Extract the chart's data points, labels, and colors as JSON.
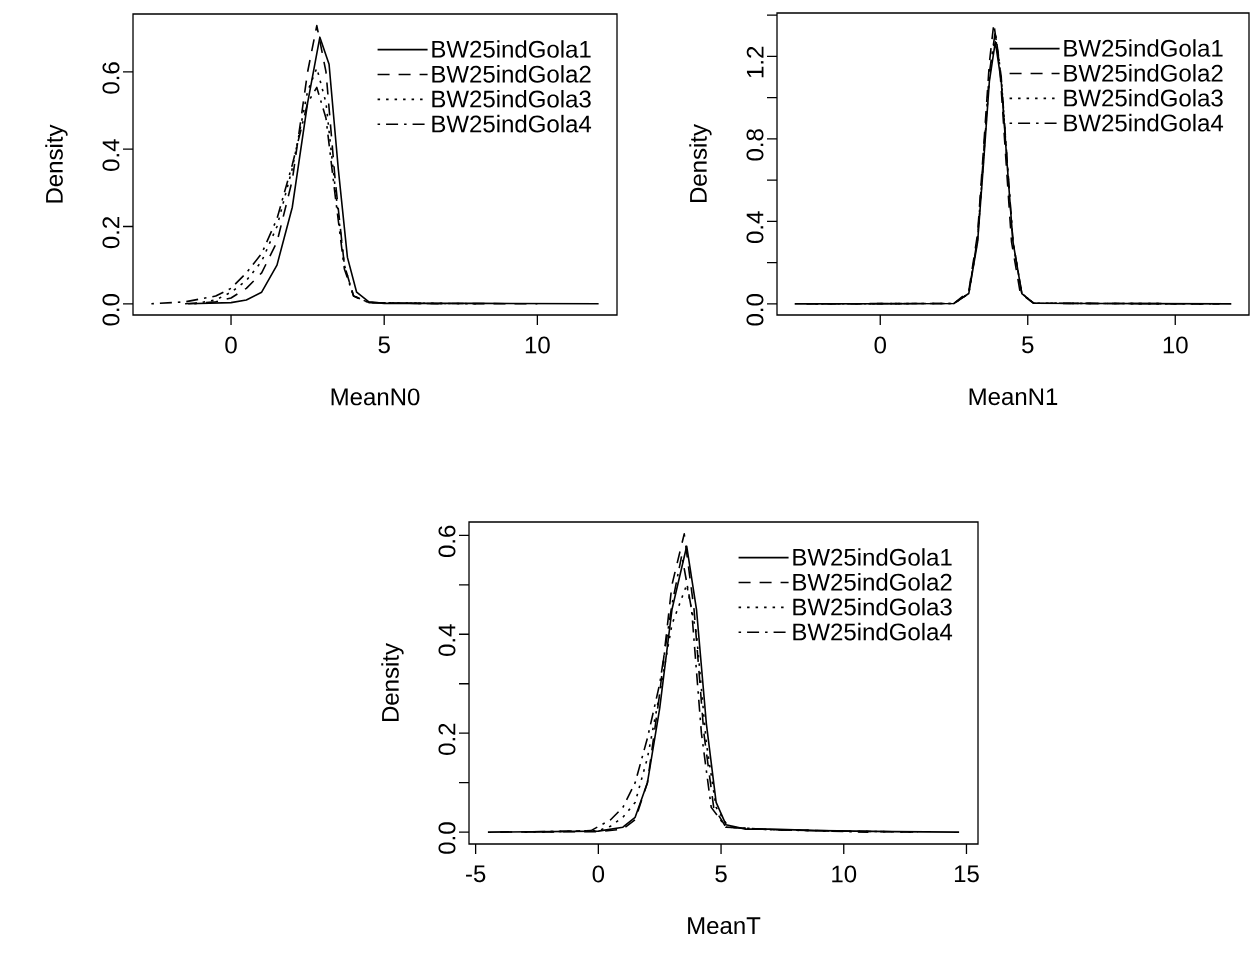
{
  "chart_data": [
    {
      "type": "line",
      "xlabel": "MeanN0",
      "ylabel": "Density",
      "xlim": [
        -3.2,
        12.6
      ],
      "ylim": [
        -0.029,
        0.75
      ],
      "xticks": [
        0,
        5,
        10
      ],
      "yticks": [
        {
          "value": 0,
          "label": "0.0"
        },
        0.2,
        0.4,
        0.6
      ],
      "legend": "top right",
      "series": [
        {
          "name": "BW25indGola1",
          "color": "#000000",
          "line_style": "solid",
          "x": [
            -1.4,
            0,
            0.5,
            1.0,
            1.5,
            2.0,
            2.5,
            2.9,
            3.2,
            3.5,
            3.8,
            4.1,
            4.5,
            5,
            8,
            12
          ],
          "values": [
            0,
            0.003,
            0.01,
            0.03,
            0.1,
            0.25,
            0.52,
            0.69,
            0.62,
            0.35,
            0.12,
            0.03,
            0.005,
            0.001,
            0.001,
            0
          ]
        },
        {
          "name": "BW25indGola2",
          "color": "#000000",
          "line_style": "dashed",
          "x": [
            -1.5,
            -0.5,
            0,
            0.5,
            1.0,
            1.5,
            2.0,
            2.5,
            2.8,
            3.1,
            3.4,
            3.7,
            4.0,
            4.5,
            6,
            10
          ],
          "values": [
            0,
            0.005,
            0.015,
            0.04,
            0.08,
            0.16,
            0.32,
            0.6,
            0.72,
            0.6,
            0.32,
            0.1,
            0.02,
            0.003,
            0.001,
            0
          ]
        },
        {
          "name": "BW25indGola3",
          "color": "#000000",
          "line_style": "dotted",
          "x": [
            -1.2,
            -0.5,
            0,
            0.5,
            1.0,
            1.5,
            2.0,
            2.5,
            2.8,
            3.1,
            3.4,
            3.7,
            4.0,
            4.5,
            8
          ],
          "values": [
            0,
            0.01,
            0.03,
            0.06,
            0.11,
            0.2,
            0.35,
            0.55,
            0.61,
            0.52,
            0.3,
            0.1,
            0.02,
            0.003,
            0
          ]
        },
        {
          "name": "BW25indGola4",
          "color": "#000000",
          "line_style": "dashdot",
          "x": [
            -2.6,
            -1.5,
            -0.5,
            0,
            0.5,
            1.0,
            1.5,
            2.0,
            2.5,
            2.8,
            3.1,
            3.4,
            3.7,
            4.0,
            4.5,
            7
          ],
          "values": [
            0,
            0.005,
            0.02,
            0.04,
            0.08,
            0.13,
            0.22,
            0.36,
            0.52,
            0.56,
            0.48,
            0.28,
            0.09,
            0.02,
            0.003,
            0
          ]
        }
      ]
    },
    {
      "type": "line",
      "xlabel": "MeanN1",
      "ylabel": "Density",
      "xlim": [
        -3.5,
        12.5
      ],
      "ylim": [
        -0.054,
        1.41
      ],
      "xticks": [
        0,
        5,
        10
      ],
      "yticks": [
        {
          "value": 0,
          "label": "0.0"
        },
        {
          "value": 0.2,
          "label": null
        },
        0.4,
        {
          "value": 0.6,
          "label": null
        },
        0.8,
        {
          "value": 1.0,
          "label": null
        },
        1.2,
        {
          "value": 1.4,
          "label": null
        }
      ],
      "legend": "top right",
      "series": [
        {
          "name": "BW25indGola1",
          "color": "#000000",
          "line_style": "solid",
          "x": [
            -2.9,
            2.5,
            3.0,
            3.3,
            3.5,
            3.7,
            3.9,
            4.1,
            4.3,
            4.5,
            4.8,
            5.2,
            11.9
          ],
          "values": [
            0,
            0.002,
            0.05,
            0.3,
            0.68,
            1.08,
            1.27,
            1.08,
            0.68,
            0.3,
            0.05,
            0.003,
            0
          ]
        },
        {
          "name": "BW25indGola2",
          "color": "#000000",
          "line_style": "dashed",
          "x": [
            -2.5,
            2.5,
            3.0,
            3.3,
            3.5,
            3.7,
            3.85,
            4.05,
            4.25,
            4.45,
            4.75,
            5.2,
            11.5
          ],
          "values": [
            0,
            0.002,
            0.06,
            0.34,
            0.75,
            1.17,
            1.36,
            1.15,
            0.72,
            0.3,
            0.05,
            0.003,
            0
          ]
        },
        {
          "name": "BW25indGola3",
          "color": "#000000",
          "line_style": "dotted",
          "x": [
            -2.0,
            2.5,
            3.0,
            3.3,
            3.5,
            3.7,
            3.9,
            4.1,
            4.3,
            4.5,
            4.8,
            5.2,
            11.0
          ],
          "values": [
            0,
            0.002,
            0.05,
            0.31,
            0.7,
            1.1,
            1.3,
            1.1,
            0.69,
            0.3,
            0.05,
            0.003,
            0
          ]
        },
        {
          "name": "BW25indGola4",
          "color": "#000000",
          "line_style": "dashdot",
          "x": [
            -2.2,
            2.5,
            3.0,
            3.3,
            3.5,
            3.7,
            3.9,
            4.1,
            4.3,
            4.5,
            4.8,
            5.2,
            11.2
          ],
          "values": [
            0,
            0.002,
            0.05,
            0.32,
            0.72,
            1.12,
            1.32,
            1.1,
            0.7,
            0.3,
            0.05,
            0.003,
            0
          ]
        }
      ]
    },
    {
      "type": "line",
      "xlabel": "MeanT",
      "ylabel": "Density",
      "xlim": [
        -5.27,
        15.47
      ],
      "ylim": [
        -0.024,
        0.627
      ],
      "xticks": [
        -5,
        0,
        5,
        10,
        15
      ],
      "yticks": [
        {
          "value": 0,
          "label": "0.0"
        },
        {
          "value": 0.1,
          "label": null
        },
        0.2,
        {
          "value": 0.3,
          "label": null
        },
        0.4,
        {
          "value": 0.5,
          "label": null
        },
        0.6
      ],
      "legend": "top right",
      "series": [
        {
          "name": "BW25indGola1",
          "color": "#000000",
          "line_style": "solid",
          "x": [
            -4.5,
            0,
            1.0,
            1.5,
            2.0,
            2.5,
            3.0,
            3.6,
            4.0,
            4.4,
            4.8,
            5.2,
            6,
            7,
            9,
            12,
            14.7
          ],
          "values": [
            0,
            0.002,
            0.01,
            0.03,
            0.1,
            0.25,
            0.45,
            0.578,
            0.45,
            0.22,
            0.06,
            0.015,
            0.006,
            0.006,
            0.003,
            0.001,
            0
          ]
        },
        {
          "name": "BW25indGola2",
          "color": "#000000",
          "line_style": "dashed",
          "x": [
            -4,
            0,
            1.0,
            1.5,
            2.0,
            2.5,
            3.0,
            3.5,
            3.9,
            4.3,
            4.7,
            5.2,
            7,
            10,
            13
          ],
          "values": [
            0,
            0.001,
            0.006,
            0.025,
            0.1,
            0.28,
            0.5,
            0.603,
            0.45,
            0.2,
            0.05,
            0.01,
            0.005,
            0.002,
            0
          ]
        },
        {
          "name": "BW25indGola3",
          "color": "#000000",
          "line_style": "dotted",
          "x": [
            -3,
            0,
            0.5,
            1.0,
            1.5,
            2.0,
            2.5,
            3.0,
            3.6,
            4.0,
            4.4,
            4.8,
            5.3,
            7,
            10,
            13
          ],
          "values": [
            0,
            0.003,
            0.012,
            0.03,
            0.06,
            0.15,
            0.28,
            0.42,
            0.5,
            0.4,
            0.18,
            0.05,
            0.01,
            0.005,
            0.002,
            0
          ]
        },
        {
          "name": "BW25indGola4",
          "color": "#000000",
          "line_style": "dashdot",
          "x": [
            -3,
            -0.3,
            0.5,
            1.0,
            1.5,
            2.0,
            2.5,
            3.0,
            3.4,
            3.8,
            4.2,
            4.6,
            5.2,
            7,
            11
          ],
          "values": [
            0,
            0.003,
            0.025,
            0.05,
            0.1,
            0.19,
            0.3,
            0.46,
            0.56,
            0.45,
            0.2,
            0.05,
            0.01,
            0.005,
            0
          ]
        }
      ]
    }
  ]
}
